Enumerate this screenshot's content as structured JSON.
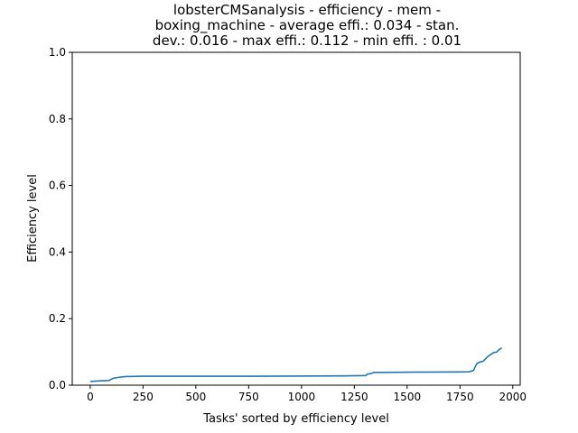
{
  "chart_data": {
    "type": "line",
    "title_lines": [
      "lobsterCMSanalysis - efficiency - mem -",
      "boxing_machine - average effi.: 0.034 - stan.",
      "dev.: 0.016 - max effi.: 0.112 - min effi. : 0.01"
    ],
    "xlabel": "Tasks' sorted by efficiency level",
    "ylabel": "Efficiency level",
    "xlim": [
      -85,
      2035
    ],
    "ylim": [
      0,
      1.0
    ],
    "xticks": [
      0,
      250,
      500,
      750,
      1000,
      1250,
      1500,
      1750,
      2000
    ],
    "yticks": [
      0.0,
      0.2,
      0.4,
      0.6,
      0.8,
      1.0
    ],
    "ytick_labels": [
      "0.0",
      "0.2",
      "0.4",
      "0.6",
      "0.8",
      "1.0"
    ],
    "grid": false,
    "series": [
      {
        "color": "#1f77b4",
        "x": [
          0,
          20,
          50,
          90,
          100,
          110,
          130,
          150,
          170,
          250,
          400,
          800,
          1200,
          1305,
          1310,
          1330,
          1340,
          1500,
          1790,
          1800,
          1815,
          1820,
          1830,
          1845,
          1860,
          1870,
          1880,
          1895,
          1910,
          1925,
          1935,
          1948
        ],
        "y": [
          0.011,
          0.012,
          0.013,
          0.014,
          0.018,
          0.021,
          0.023,
          0.025,
          0.026,
          0.027,
          0.027,
          0.027,
          0.028,
          0.029,
          0.033,
          0.035,
          0.038,
          0.039,
          0.04,
          0.041,
          0.045,
          0.053,
          0.065,
          0.07,
          0.072,
          0.078,
          0.085,
          0.092,
          0.098,
          0.1,
          0.107,
          0.112
        ]
      }
    ]
  }
}
